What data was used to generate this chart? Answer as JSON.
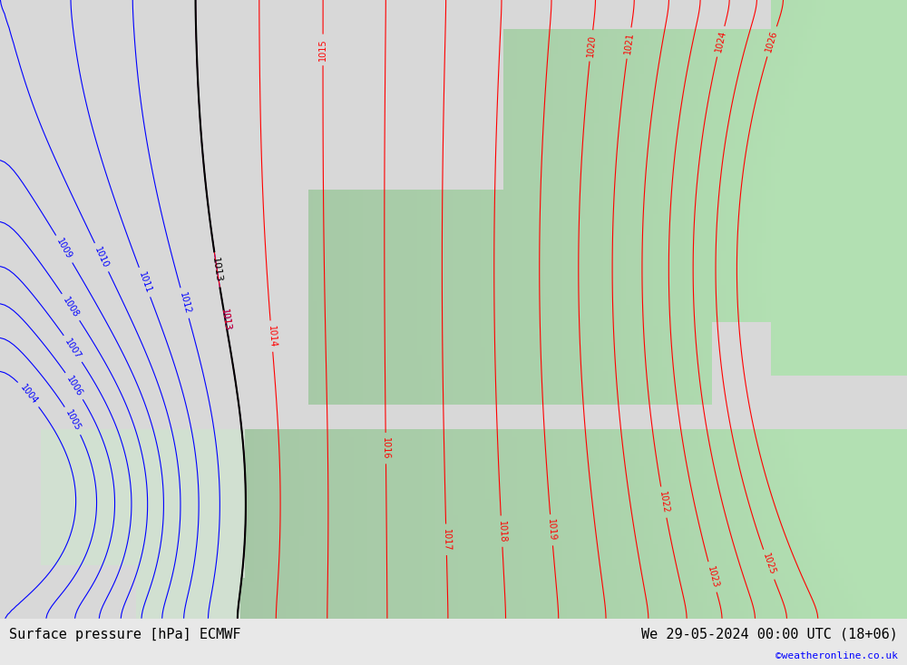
{
  "title_left": "Surface pressure [hPa] ECMWF",
  "title_right": "We 29-05-2024 00:00 UTC (18+06)",
  "watermark": "©weatheronline.co.uk",
  "bg_color": "#e8e8e8",
  "land_color_low": "#c8dfc8",
  "land_color_high": "#a8cfa8",
  "figsize": [
    10.0,
    7.33
  ],
  "dpi": 100,
  "pressure_min": 1004,
  "pressure_max": 1026,
  "contour_interval": 1,
  "black_interval": 2,
  "blue_threshold": 1013,
  "red_threshold": 1013
}
